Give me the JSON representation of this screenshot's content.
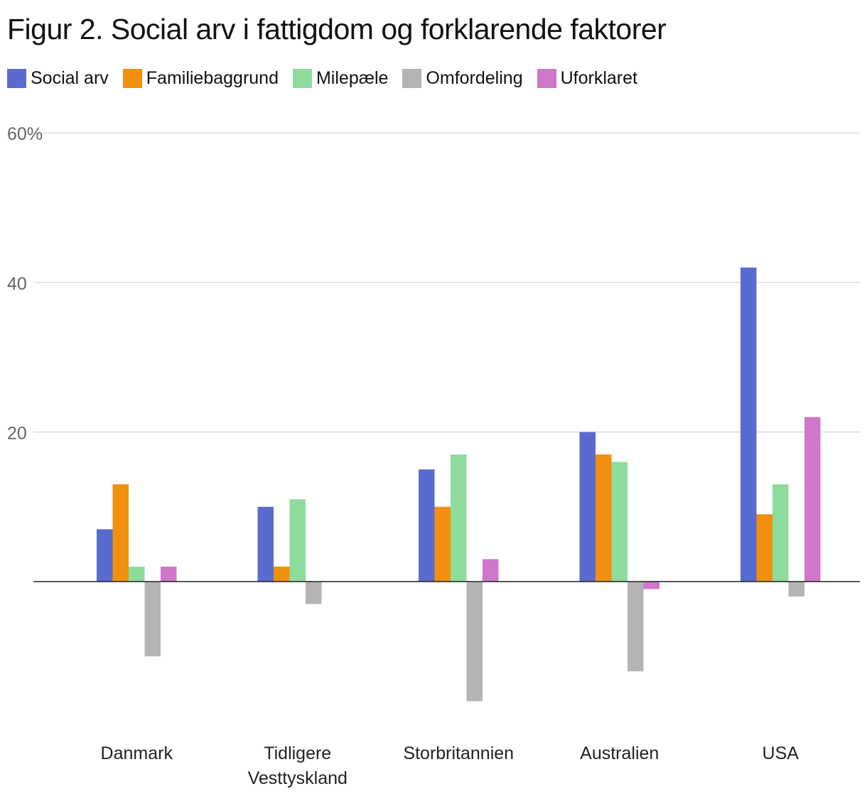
{
  "chart_data": {
    "type": "bar",
    "title": "Figur 2. Social arv i fattigdom og forklarende faktorer",
    "categories": [
      "Danmark",
      "Tidligere Vesttyskland",
      "Storbritannien",
      "Australien",
      "USA"
    ],
    "category_lines": [
      [
        "Danmark"
      ],
      [
        "Tidligere",
        "Vesttyskland"
      ],
      [
        "Storbritannien"
      ],
      [
        "Australien"
      ],
      [
        "USA"
      ]
    ],
    "series": [
      {
        "name": "Social arv",
        "color": "#5a6bd0",
        "values": [
          7,
          10,
          15,
          20,
          42
        ]
      },
      {
        "name": "Familiebaggrund",
        "color": "#f0900e",
        "values": [
          13,
          2,
          10,
          17,
          9
        ]
      },
      {
        "name": "Milepæle",
        "color": "#8ddc9c",
        "values": [
          2,
          11,
          17,
          16,
          13
        ]
      },
      {
        "name": "Omfordeling",
        "color": "#b4b4b4",
        "values": [
          -10,
          -3,
          -16,
          -12,
          -2
        ]
      },
      {
        "name": "Uforklaret",
        "color": "#cf77ca",
        "values": [
          2,
          0,
          3,
          -1,
          22
        ]
      }
    ],
    "yticks": [
      {
        "value": 60,
        "label": "60%"
      },
      {
        "value": 40,
        "label": "40"
      },
      {
        "value": 20,
        "label": "20"
      }
    ],
    "ylim": [
      -20,
      60
    ],
    "xlabel": "",
    "ylabel": "",
    "grid": true,
    "legend_position": "top-left"
  }
}
